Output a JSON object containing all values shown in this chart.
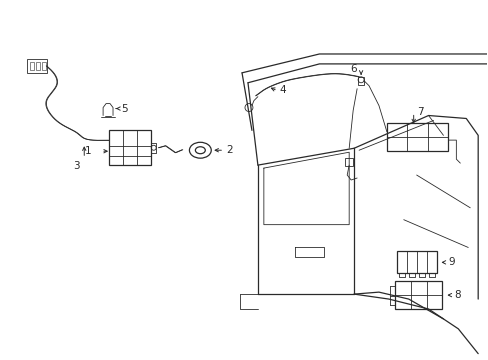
{
  "background_color": "#ffffff",
  "line_color": "#2a2a2a",
  "lw": 0.9,
  "tlw": 0.6,
  "fs": 7.5,
  "figsize": [
    4.89,
    3.6
  ],
  "dpi": 100
}
